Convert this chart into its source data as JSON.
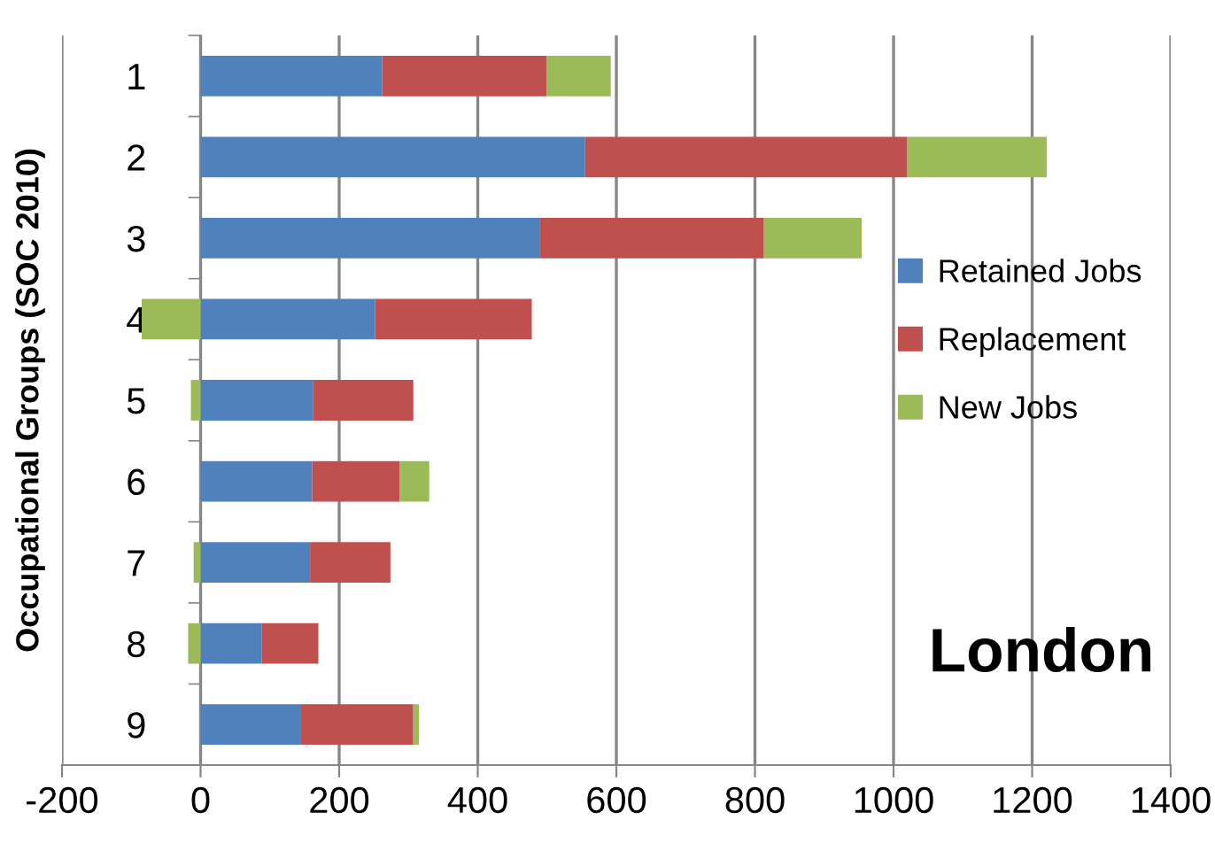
{
  "chart_data": {
    "type": "bar",
    "orientation": "horizontal",
    "stacked": true,
    "ylabel": "Occupational Groups (SOC 2010)",
    "categories": [
      "1",
      "2",
      "3",
      "4",
      "5",
      "6",
      "7",
      "8",
      "9"
    ],
    "series": [
      {
        "name": "Retained Jobs",
        "color": "#4f81bd",
        "values": [
          262,
          555,
          489,
          252,
          162,
          161,
          158,
          88,
          145
        ]
      },
      {
        "name": "Replacement",
        "color": "#c0504d",
        "values": [
          237,
          465,
          324,
          226,
          145,
          126,
          116,
          82,
          162
        ]
      },
      {
        "name": "New Jobs",
        "color": "#9bbb59",
        "values": [
          93,
          201,
          141,
          -85,
          -14,
          43,
          -10,
          -18,
          8
        ]
      }
    ],
    "xlim": [
      -200,
      1400
    ],
    "xticks": [
      -200,
      0,
      200,
      400,
      600,
      800,
      1000,
      1200,
      1400
    ],
    "grid": "x",
    "legend": "right",
    "annotations": [
      "London"
    ]
  }
}
